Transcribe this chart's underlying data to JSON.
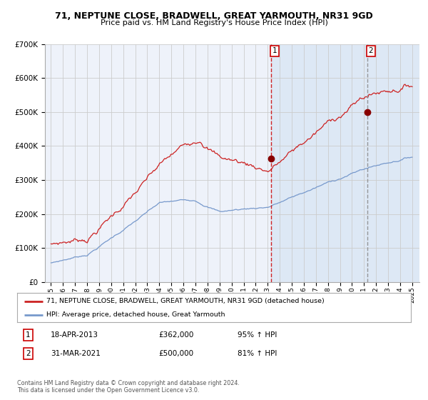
{
  "title_line1": "71, NEPTUNE CLOSE, BRADWELL, GREAT YARMOUTH, NR31 9GD",
  "title_line2": "Price paid vs. HM Land Registry's House Price Index (HPI)",
  "ylim": [
    0,
    700000
  ],
  "yticks": [
    0,
    100000,
    200000,
    300000,
    400000,
    500000,
    600000,
    700000
  ],
  "ytick_labels": [
    "£0",
    "£100K",
    "£200K",
    "£300K",
    "£400K",
    "£500K",
    "£600K",
    "£700K"
  ],
  "x_start_year": 1995,
  "x_end_year": 2025,
  "hpi_color": "#7799cc",
  "price_color": "#cc2222",
  "background_color": "#ffffff",
  "plot_bg_color": "#eef2fa",
  "grid_color": "#cccccc",
  "shade_color": "#dde8f5",
  "point1_year": 2013.29,
  "point1_value": 362000,
  "point2_year": 2021.25,
  "point2_value": 500000,
  "vline1_year": 2013.29,
  "vline2_year": 2021.25,
  "legend_entries": [
    "71, NEPTUNE CLOSE, BRADWELL, GREAT YARMOUTH, NR31 9GD (detached house)",
    "HPI: Average price, detached house, Great Yarmouth"
  ],
  "annotation1_label": "1",
  "annotation1_date": "18-APR-2013",
  "annotation1_price": "£362,000",
  "annotation1_hpi": "95% ↑ HPI",
  "annotation2_label": "2",
  "annotation2_date": "31-MAR-2021",
  "annotation2_price": "£500,000",
  "annotation2_hpi": "81% ↑ HPI",
  "footer": "Contains HM Land Registry data © Crown copyright and database right 2024.\nThis data is licensed under the Open Government Licence v3.0."
}
